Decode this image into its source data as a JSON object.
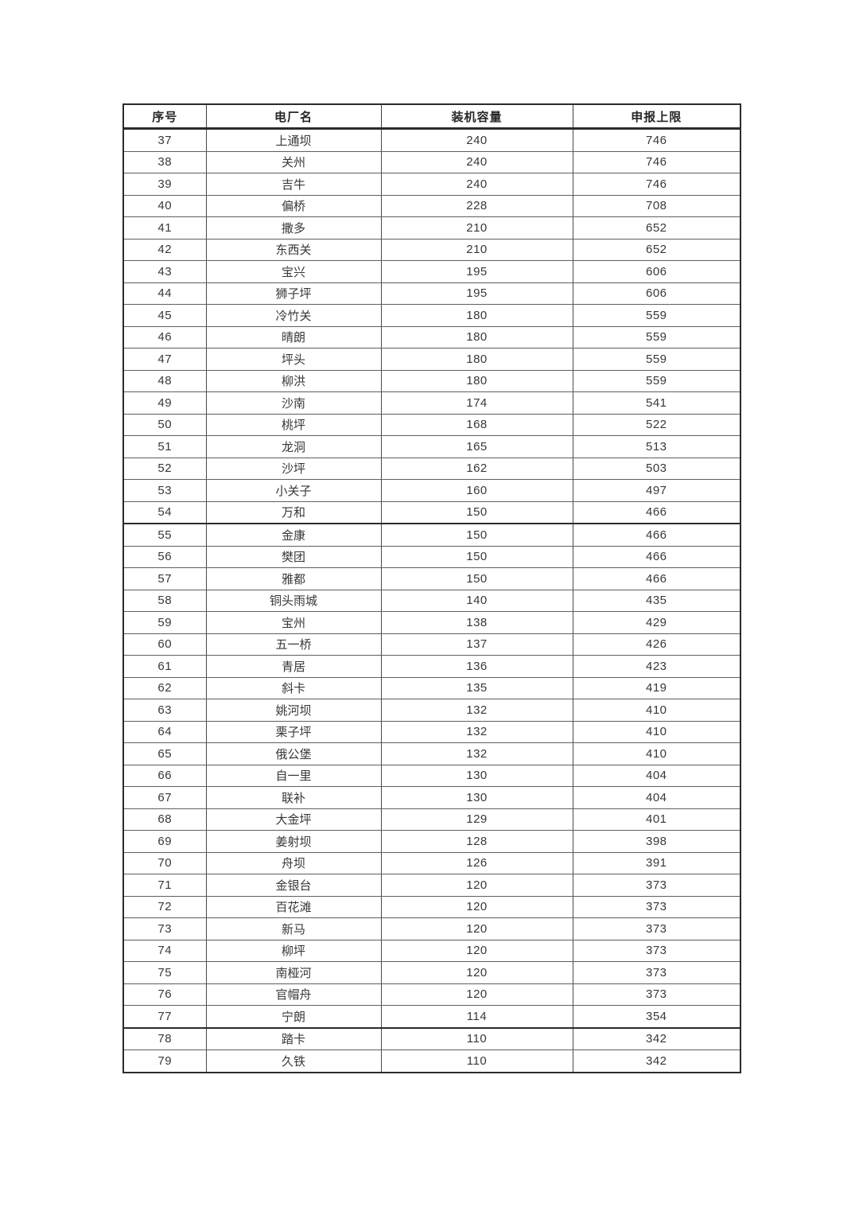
{
  "document": {
    "table": {
      "headers": [
        "序号",
        "电厂名",
        "装机容量",
        "申报上限"
      ],
      "rows": [
        [
          "37",
          "上通坝",
          "240",
          "746"
        ],
        [
          "38",
          "关州",
          "240",
          "746"
        ],
        [
          "39",
          "吉牛",
          "240",
          "746"
        ],
        [
          "40",
          "偏桥",
          "228",
          "708"
        ],
        [
          "41",
          "撒多",
          "210",
          "652"
        ],
        [
          "42",
          "东西关",
          "210",
          "652"
        ],
        [
          "43",
          "宝兴",
          "195",
          "606"
        ],
        [
          "44",
          "狮子坪",
          "195",
          "606"
        ],
        [
          "45",
          "冷竹关",
          "180",
          "559"
        ],
        [
          "46",
          "晴朗",
          "180",
          "559"
        ],
        [
          "47",
          "坪头",
          "180",
          "559"
        ],
        [
          "48",
          "柳洪",
          "180",
          "559"
        ],
        [
          "49",
          "沙南",
          "174",
          "541"
        ],
        [
          "50",
          "桃坪",
          "168",
          "522"
        ],
        [
          "51",
          "龙洞",
          "165",
          "513"
        ],
        [
          "52",
          "沙坪",
          "162",
          "503"
        ],
        [
          "53",
          "小关子",
          "160",
          "497"
        ],
        [
          "54",
          "万和",
          "150",
          "466"
        ],
        [
          "55",
          "金康",
          "150",
          "466"
        ],
        [
          "56",
          "樊团",
          "150",
          "466"
        ],
        [
          "57",
          "雅都",
          "150",
          "466"
        ],
        [
          "58",
          "铜头雨城",
          "140",
          "435"
        ],
        [
          "59",
          "宝州",
          "138",
          "429"
        ],
        [
          "60",
          "五一桥",
          "137",
          "426"
        ],
        [
          "61",
          "青居",
          "136",
          "423"
        ],
        [
          "62",
          "斜卡",
          "135",
          "419"
        ],
        [
          "63",
          "姚河坝",
          "132",
          "410"
        ],
        [
          "64",
          "栗子坪",
          "132",
          "410"
        ],
        [
          "65",
          "俄公堡",
          "132",
          "410"
        ],
        [
          "66",
          "自一里",
          "130",
          "404"
        ],
        [
          "67",
          "联补",
          "130",
          "404"
        ],
        [
          "68",
          "大金坪",
          "129",
          "401"
        ],
        [
          "69",
          "姜射坝",
          "128",
          "398"
        ],
        [
          "70",
          "舟坝",
          "126",
          "391"
        ],
        [
          "71",
          "金银台",
          "120",
          "373"
        ],
        [
          "72",
          "百花滩",
          "120",
          "373"
        ],
        [
          "73",
          "新马",
          "120",
          "373"
        ],
        [
          "74",
          "柳坪",
          "120",
          "373"
        ],
        [
          "75",
          "南桠河",
          "120",
          "373"
        ],
        [
          "76",
          "官帽舟",
          "120",
          "373"
        ],
        [
          "77",
          "宁朗",
          "114",
          "354"
        ],
        [
          "78",
          "踏卡",
          "110",
          "342"
        ],
        [
          "79",
          "久铁",
          "110",
          "342"
        ]
      ],
      "thick_border_after_rows": [
        "54",
        "77"
      ]
    }
  }
}
